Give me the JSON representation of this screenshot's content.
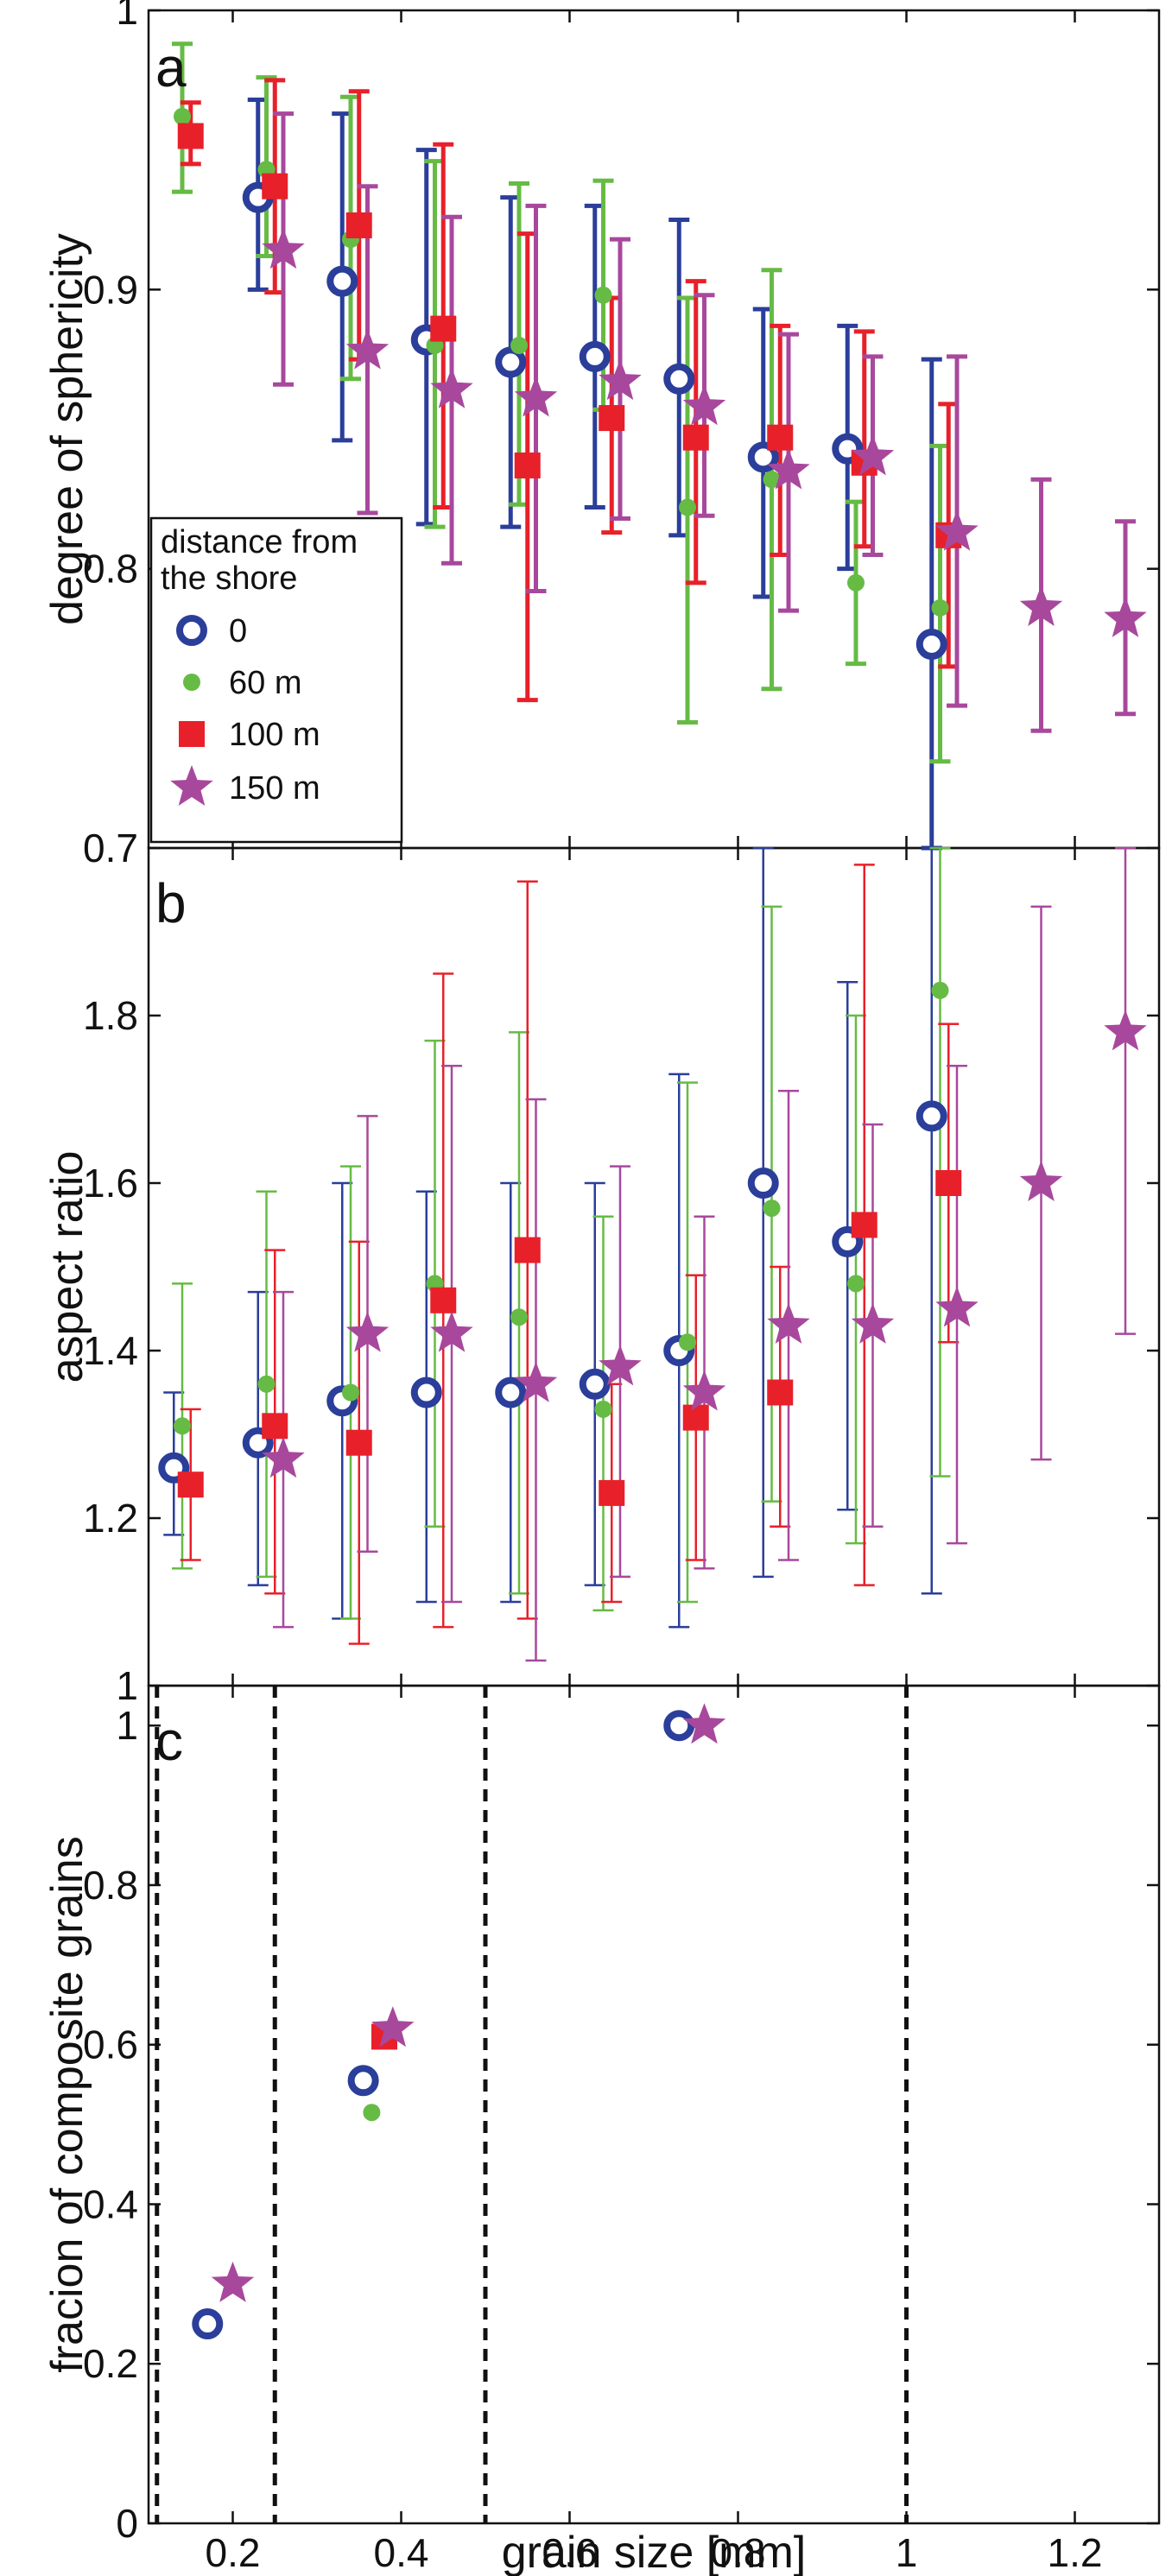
{
  "figure": {
    "xlabel": "grain size [mm]",
    "xlim": [
      0.1,
      1.3
    ],
    "xticks": [
      0.2,
      0.4,
      0.6,
      0.8,
      1,
      1.2
    ],
    "xtick_labels": [
      "0.2",
      "0.4",
      "0.6",
      "0.8",
      "1",
      "1.2"
    ]
  },
  "colors": {
    "0": "#2a3e9a",
    "60 m": "#66bb44",
    "100 m": "#e8202a",
    "150 m": "#a8489c",
    "axis": "#111111",
    "dashed": "#111111"
  },
  "chart_data": [
    {
      "panel": "a",
      "type": "scatter",
      "ylabel": "degree of sphericity",
      "ylim": [
        0.7,
        1.0
      ],
      "yticks": [
        0.7,
        0.8,
        0.9,
        1.0
      ],
      "ytick_labels": [
        "0.7",
        "0.8",
        "0.9",
        "1"
      ],
      "legend": {
        "title_line1": "distance from",
        "title_line2": "the shore",
        "position": "lower-left",
        "entries": [
          "0",
          "60 m",
          "100 m",
          "150 m"
        ]
      },
      "series": [
        {
          "name": "0",
          "marker": "circle",
          "points": [
            {
              "x": 0.23,
              "y": 0.933,
              "lo": 0.9,
              "hi": 0.968
            },
            {
              "x": 0.33,
              "y": 0.903,
              "lo": 0.846,
              "hi": 0.963
            },
            {
              "x": 0.43,
              "y": 0.882,
              "lo": 0.816,
              "hi": 0.95
            },
            {
              "x": 0.53,
              "y": 0.874,
              "lo": 0.815,
              "hi": 0.933
            },
            {
              "x": 0.63,
              "y": 0.876,
              "lo": 0.822,
              "hi": 0.93
            },
            {
              "x": 0.73,
              "y": 0.868,
              "lo": 0.812,
              "hi": 0.925
            },
            {
              "x": 0.83,
              "y": 0.84,
              "lo": 0.79,
              "hi": 0.893
            },
            {
              "x": 0.93,
              "y": 0.843,
              "lo": 0.8,
              "hi": 0.887
            },
            {
              "x": 1.03,
              "y": 0.773,
              "lo": 0.7,
              "hi": 0.875
            }
          ]
        },
        {
          "name": "60 m",
          "marker": "dot",
          "points": [
            {
              "x": 0.14,
              "y": 0.962,
              "lo": 0.935,
              "hi": 0.988
            },
            {
              "x": 0.24,
              "y": 0.943,
              "lo": 0.912,
              "hi": 0.976
            },
            {
              "x": 0.34,
              "y": 0.918,
              "lo": 0.868,
              "hi": 0.969
            },
            {
              "x": 0.44,
              "y": 0.88,
              "lo": 0.815,
              "hi": 0.946
            },
            {
              "x": 0.54,
              "y": 0.88,
              "lo": 0.823,
              "hi": 0.938
            },
            {
              "x": 0.64,
              "y": 0.898,
              "lo": 0.857,
              "hi": 0.939
            },
            {
              "x": 0.74,
              "y": 0.822,
              "lo": 0.745,
              "hi": 0.897
            },
            {
              "x": 0.84,
              "y": 0.832,
              "lo": 0.757,
              "hi": 0.907
            },
            {
              "x": 0.94,
              "y": 0.795,
              "lo": 0.766,
              "hi": 0.824
            },
            {
              "x": 1.04,
              "y": 0.786,
              "lo": 0.731,
              "hi": 0.844
            }
          ]
        },
        {
          "name": "100 m",
          "marker": "square",
          "points": [
            {
              "x": 0.15,
              "y": 0.955,
              "lo": 0.945,
              "hi": 0.967
            },
            {
              "x": 0.25,
              "y": 0.937,
              "lo": 0.899,
              "hi": 0.975
            },
            {
              "x": 0.35,
              "y": 0.923,
              "lo": 0.875,
              "hi": 0.971
            },
            {
              "x": 0.45,
              "y": 0.886,
              "lo": 0.822,
              "hi": 0.952
            },
            {
              "x": 0.55,
              "y": 0.837,
              "lo": 0.753,
              "hi": 0.92
            },
            {
              "x": 0.65,
              "y": 0.854,
              "lo": 0.813,
              "hi": 0.897
            },
            {
              "x": 0.75,
              "y": 0.847,
              "lo": 0.795,
              "hi": 0.903
            },
            {
              "x": 0.85,
              "y": 0.847,
              "lo": 0.805,
              "hi": 0.887
            },
            {
              "x": 0.95,
              "y": 0.838,
              "lo": 0.808,
              "hi": 0.885
            },
            {
              "x": 1.05,
              "y": 0.812,
              "lo": 0.765,
              "hi": 0.859
            }
          ]
        },
        {
          "name": "150 m",
          "marker": "star",
          "points": [
            {
              "x": 0.26,
              "y": 0.914,
              "lo": 0.866,
              "hi": 0.963
            },
            {
              "x": 0.36,
              "y": 0.878,
              "lo": 0.82,
              "hi": 0.937
            },
            {
              "x": 0.46,
              "y": 0.864,
              "lo": 0.802,
              "hi": 0.926
            },
            {
              "x": 0.56,
              "y": 0.861,
              "lo": 0.792,
              "hi": 0.93
            },
            {
              "x": 0.66,
              "y": 0.867,
              "lo": 0.818,
              "hi": 0.918
            },
            {
              "x": 0.76,
              "y": 0.858,
              "lo": 0.819,
              "hi": 0.898
            },
            {
              "x": 0.86,
              "y": 0.835,
              "lo": 0.785,
              "hi": 0.884
            },
            {
              "x": 0.96,
              "y": 0.84,
              "lo": 0.805,
              "hi": 0.876
            },
            {
              "x": 1.06,
              "y": 0.813,
              "lo": 0.751,
              "hi": 0.876
            },
            {
              "x": 1.16,
              "y": 0.786,
              "lo": 0.742,
              "hi": 0.832
            },
            {
              "x": 1.26,
              "y": 0.782,
              "lo": 0.748,
              "hi": 0.817
            }
          ]
        }
      ]
    },
    {
      "panel": "b",
      "type": "scatter",
      "ylabel": "aspect ratio",
      "ylim": [
        1.0,
        2.0
      ],
      "yticks": [
        1,
        1.2,
        1.4,
        1.6,
        1.8
      ],
      "ytick_labels": [
        "1",
        "1.2",
        "1.4",
        "1.6",
        "1.8"
      ],
      "series": [
        {
          "name": "0",
          "marker": "circle",
          "points": [
            {
              "x": 0.13,
              "y": 1.26,
              "lo": 1.18,
              "hi": 1.35
            },
            {
              "x": 0.23,
              "y": 1.29,
              "lo": 1.12,
              "hi": 1.47
            },
            {
              "x": 0.33,
              "y": 1.34,
              "lo": 1.08,
              "hi": 1.6
            },
            {
              "x": 0.43,
              "y": 1.35,
              "lo": 1.1,
              "hi": 1.59
            },
            {
              "x": 0.53,
              "y": 1.35,
              "lo": 1.1,
              "hi": 1.6
            },
            {
              "x": 0.63,
              "y": 1.36,
              "lo": 1.12,
              "hi": 1.6
            },
            {
              "x": 0.73,
              "y": 1.4,
              "lo": 1.07,
              "hi": 1.73
            },
            {
              "x": 0.83,
              "y": 1.6,
              "lo": 1.13,
              "hi": 2.0
            },
            {
              "x": 0.93,
              "y": 1.53,
              "lo": 1.21,
              "hi": 1.84
            },
            {
              "x": 1.03,
              "y": 1.68,
              "lo": 1.11,
              "hi": 2.0
            }
          ]
        },
        {
          "name": "60 m",
          "marker": "dot",
          "points": [
            {
              "x": 0.14,
              "y": 1.31,
              "lo": 1.14,
              "hi": 1.48
            },
            {
              "x": 0.24,
              "y": 1.36,
              "lo": 1.13,
              "hi": 1.59
            },
            {
              "x": 0.34,
              "y": 1.35,
              "lo": 1.08,
              "hi": 1.62
            },
            {
              "x": 0.44,
              "y": 1.48,
              "lo": 1.19,
              "hi": 1.77
            },
            {
              "x": 0.54,
              "y": 1.44,
              "lo": 1.11,
              "hi": 1.78
            },
            {
              "x": 0.64,
              "y": 1.33,
              "lo": 1.09,
              "hi": 1.56
            },
            {
              "x": 0.74,
              "y": 1.41,
              "lo": 1.1,
              "hi": 1.72
            },
            {
              "x": 0.84,
              "y": 1.57,
              "lo": 1.22,
              "hi": 1.93
            },
            {
              "x": 0.94,
              "y": 1.48,
              "lo": 1.17,
              "hi": 1.8
            },
            {
              "x": 1.04,
              "y": 1.83,
              "lo": 1.25,
              "hi": 2.0
            }
          ]
        },
        {
          "name": "100 m",
          "marker": "square",
          "points": [
            {
              "x": 0.15,
              "y": 1.24,
              "lo": 1.15,
              "hi": 1.33
            },
            {
              "x": 0.25,
              "y": 1.31,
              "lo": 1.11,
              "hi": 1.52
            },
            {
              "x": 0.35,
              "y": 1.29,
              "lo": 1.05,
              "hi": 1.53
            },
            {
              "x": 0.45,
              "y": 1.46,
              "lo": 1.07,
              "hi": 1.85
            },
            {
              "x": 0.55,
              "y": 1.52,
              "lo": 1.08,
              "hi": 1.96
            },
            {
              "x": 0.65,
              "y": 1.23,
              "lo": 1.1,
              "hi": 1.36
            },
            {
              "x": 0.75,
              "y": 1.32,
              "lo": 1.15,
              "hi": 1.49
            },
            {
              "x": 0.85,
              "y": 1.35,
              "lo": 1.19,
              "hi": 1.5
            },
            {
              "x": 0.95,
              "y": 1.55,
              "lo": 1.12,
              "hi": 1.98
            },
            {
              "x": 1.05,
              "y": 1.6,
              "lo": 1.41,
              "hi": 1.79
            }
          ]
        },
        {
          "name": "150 m",
          "marker": "star",
          "points": [
            {
              "x": 0.26,
              "y": 1.27,
              "lo": 1.07,
              "hi": 1.47
            },
            {
              "x": 0.36,
              "y": 1.42,
              "lo": 1.16,
              "hi": 1.68
            },
            {
              "x": 0.46,
              "y": 1.42,
              "lo": 1.1,
              "hi": 1.74
            },
            {
              "x": 0.56,
              "y": 1.36,
              "lo": 1.03,
              "hi": 1.7
            },
            {
              "x": 0.66,
              "y": 1.38,
              "lo": 1.13,
              "hi": 1.62
            },
            {
              "x": 0.76,
              "y": 1.35,
              "lo": 1.14,
              "hi": 1.56
            },
            {
              "x": 0.86,
              "y": 1.43,
              "lo": 1.15,
              "hi": 1.71
            },
            {
              "x": 0.96,
              "y": 1.43,
              "lo": 1.19,
              "hi": 1.67
            },
            {
              "x": 1.06,
              "y": 1.45,
              "lo": 1.17,
              "hi": 1.74
            },
            {
              "x": 1.16,
              "y": 1.6,
              "lo": 1.27,
              "hi": 1.93
            },
            {
              "x": 1.26,
              "y": 1.78,
              "lo": 1.42,
              "hi": 2.0
            }
          ]
        }
      ]
    },
    {
      "panel": "c",
      "type": "scatter",
      "ylabel": "fracion of composite grains",
      "xlabel": "grain size [mm]",
      "ylim": [
        0,
        1.05
      ],
      "yticks": [
        0,
        0.2,
        0.4,
        0.6,
        0.8,
        1
      ],
      "ytick_labels": [
        "0",
        "0.2",
        "0.4",
        "0.6",
        "0.8",
        "1"
      ],
      "vlines": [
        0.11,
        0.25,
        0.5,
        1.0
      ],
      "series": [
        {
          "name": "0",
          "marker": "circle",
          "points": [
            {
              "x": 0.17,
              "y": 0.25
            },
            {
              "x": 0.355,
              "y": 0.555
            },
            {
              "x": 0.73,
              "y": 1.0
            }
          ]
        },
        {
          "name": "60 m",
          "marker": "dot",
          "points": [
            {
              "x": 0.365,
              "y": 0.515
            }
          ]
        },
        {
          "name": "100 m",
          "marker": "square",
          "points": [
            {
              "x": 0.38,
              "y": 0.61
            }
          ]
        },
        {
          "name": "150 m",
          "marker": "star",
          "points": [
            {
              "x": 0.2,
              "y": 0.3
            },
            {
              "x": 0.39,
              "y": 0.62
            },
            {
              "x": 0.76,
              "y": 1.0
            }
          ]
        }
      ]
    }
  ]
}
